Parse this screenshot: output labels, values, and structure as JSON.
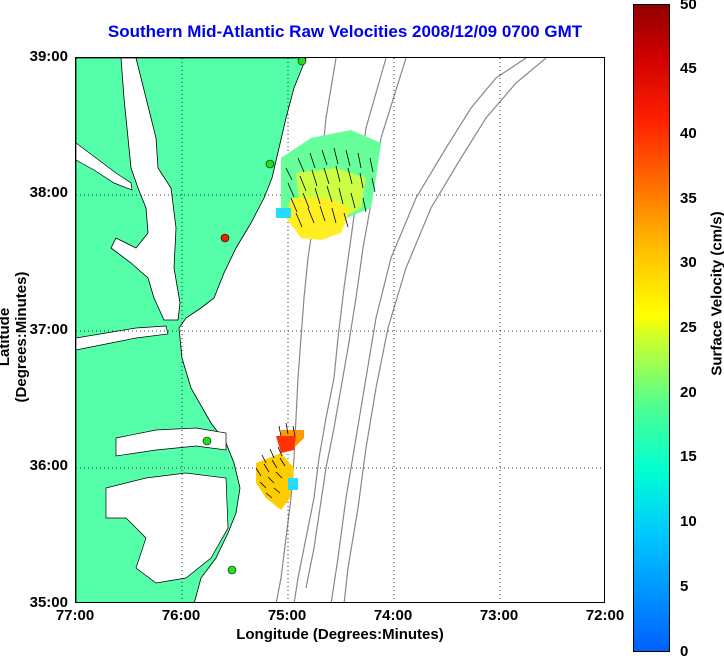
{
  "title": "Southern Mid-Atlantic Raw Velocities 2008/12/09 0700 GMT",
  "axes": {
    "xlabel": "Longitude (Degrees:Minutes)",
    "ylabel": "Latitude (Degrees:Minutes)",
    "xticks": [
      "77:00",
      "76:00",
      "75:00",
      "74:00",
      "73:00",
      "72:00"
    ],
    "yticks": [
      "39:00",
      "38:00",
      "37:00",
      "36:00",
      "35:00"
    ]
  },
  "colorbar": {
    "label": "Surface Velocity (cm/s)",
    "ticks": [
      "50",
      "45",
      "40",
      "35",
      "30",
      "25",
      "20",
      "15",
      "10",
      "5",
      "0"
    ]
  },
  "colors": {
    "title": "#0000ee",
    "land": "#55ffaa",
    "station_green": "#22dd22",
    "station_red": "#ee2200"
  }
}
